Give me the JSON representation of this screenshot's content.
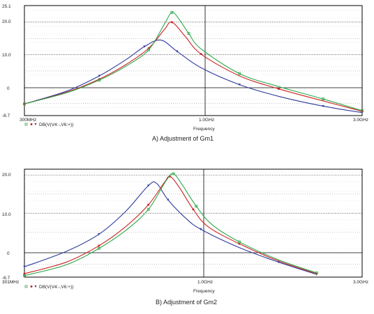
{
  "chart_data": [
    {
      "type": "line",
      "caption": "A) Adjustment of Gm1",
      "xlabel": "Frequency",
      "x_scale": "log",
      "xlim": [
        "300MHz",
        "3.0GHz"
      ],
      "ylim": [
        -8.7,
        25.1
      ],
      "x_tick_labels": [
        "300MHz",
        "1.0GHz",
        "3.0GHz"
      ],
      "y_tick_labels": [
        "25.1",
        "20.0",
        "10.0",
        "0",
        "-8.7"
      ],
      "legend": "DB(V(V4:-,V6:+))",
      "grid": true,
      "series": [
        {
          "color": "#2e3a9c",
          "x": [
            300,
            400,
            500,
            600,
            680,
            760,
            850,
            1000,
            1300,
            1700,
            2300,
            3000
          ],
          "y": [
            -5.1,
            -1.2,
            3.5,
            8.5,
            12.5,
            14.5,
            11.0,
            6.0,
            0.8,
            -2.8,
            -5.8,
            -7.8
          ]
        },
        {
          "color": "#cc2222",
          "x": [
            300,
            400,
            500,
            600,
            700,
            780,
            820,
            900,
            1000,
            1300,
            1700,
            2300,
            3000
          ],
          "y": [
            -5.1,
            -1.5,
            2.5,
            7.0,
            12.0,
            17.8,
            20.0,
            15.5,
            10.2,
            3.5,
            -0.5,
            -4.2,
            -7.4
          ]
        },
        {
          "color": "#2ea84a",
          "x": [
            300,
            400,
            500,
            600,
            700,
            780,
            820,
            860,
            920,
            1000,
            1300,
            1700,
            2300,
            3000
          ],
          "y": [
            -5.1,
            -1.7,
            2.2,
            6.5,
            11.5,
            19.5,
            23.0,
            21.0,
            16.5,
            11.8,
            4.2,
            0.2,
            -3.6,
            -7.2
          ]
        }
      ]
    },
    {
      "type": "line",
      "caption": "B) Adjustment of Gm2",
      "xlabel": "Frequency",
      "x_scale": "log",
      "xlim": [
        "301MHz",
        "3.0GHz"
      ],
      "ylim": [
        -6.7,
        21.5
      ],
      "x_tick_labels": [
        "301MHz",
        "1.0GHz",
        "3.0GHz"
      ],
      "y_tick_labels": [
        "20.0",
        "10.0",
        "0",
        "-6.7"
      ],
      "legend": "DB(V(V4:-,V6:+))",
      "grid": true,
      "series": [
        {
          "color": "#2e3a9c",
          "x": [
            301,
            400,
            500,
            600,
            700,
            740,
            800,
            900,
            1000,
            1300,
            1700,
            2200
          ],
          "y": [
            -4.0,
            0.0,
            4.5,
            10.5,
            17.2,
            17.8,
            13.5,
            8.8,
            5.8,
            1.0,
            -2.8,
            -6.0
          ]
        },
        {
          "color": "#cc2222",
          "x": [
            301,
            400,
            500,
            600,
            700,
            780,
            810,
            860,
            950,
            1050,
            1300,
            1700,
            2200
          ],
          "y": [
            -5.8,
            -2.8,
            1.5,
            6.5,
            12.2,
            18.0,
            19.6,
            17.0,
            11.0,
            6.5,
            2.0,
            -2.5,
            -5.8
          ]
        },
        {
          "color": "#2ea84a",
          "x": [
            301,
            400,
            500,
            600,
            700,
            790,
            830,
            880,
            970,
            1080,
            1300,
            1700,
            2200
          ],
          "y": [
            -6.3,
            -3.5,
            0.8,
            5.5,
            11.0,
            18.5,
            20.3,
            17.5,
            11.8,
            7.0,
            2.5,
            -2.2,
            -5.6
          ]
        }
      ]
    }
  ]
}
